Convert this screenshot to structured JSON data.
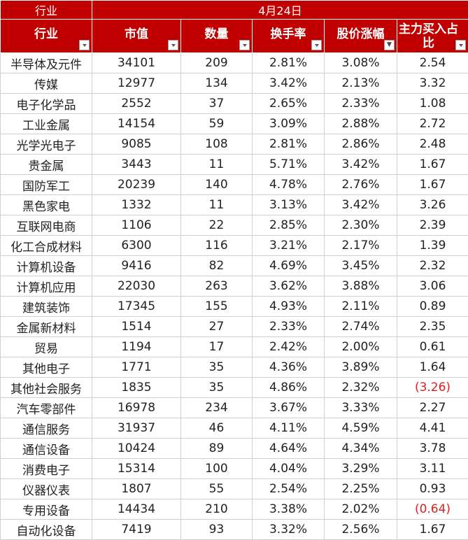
{
  "header": {
    "corner": "行业",
    "date": "4月24日",
    "columns": [
      "行业",
      "市值",
      "数量",
      "换手率",
      "股价涨幅",
      "主力买入占比"
    ]
  },
  "rows": [
    {
      "industry": "半导体及元件",
      "mcap": "34101",
      "count": "209",
      "turnover": "2.81%",
      "rise": "3.08%",
      "main": "2.54",
      "neg": false
    },
    {
      "industry": "传媒",
      "mcap": "12977",
      "count": "134",
      "turnover": "3.42%",
      "rise": "2.13%",
      "main": "3.32",
      "neg": false
    },
    {
      "industry": "电子化学品",
      "mcap": "2552",
      "count": "37",
      "turnover": "2.65%",
      "rise": "2.33%",
      "main": "1.08",
      "neg": false
    },
    {
      "industry": "工业金属",
      "mcap": "14154",
      "count": "59",
      "turnover": "3.09%",
      "rise": "2.88%",
      "main": "2.72",
      "neg": false
    },
    {
      "industry": "光学光电子",
      "mcap": "9085",
      "count": "108",
      "turnover": "2.81%",
      "rise": "2.86%",
      "main": "2.48",
      "neg": false
    },
    {
      "industry": "贵金属",
      "mcap": "3443",
      "count": "11",
      "turnover": "5.71%",
      "rise": "3.42%",
      "main": "1.67",
      "neg": false
    },
    {
      "industry": "国防军工",
      "mcap": "20239",
      "count": "140",
      "turnover": "4.78%",
      "rise": "2.76%",
      "main": "1.67",
      "neg": false
    },
    {
      "industry": "黑色家电",
      "mcap": "1332",
      "count": "11",
      "turnover": "3.13%",
      "rise": "3.42%",
      "main": "3.26",
      "neg": false
    },
    {
      "industry": "互联网电商",
      "mcap": "1106",
      "count": "22",
      "turnover": "2.85%",
      "rise": "2.30%",
      "main": "2.39",
      "neg": false
    },
    {
      "industry": "化工合成材料",
      "mcap": "6300",
      "count": "116",
      "turnover": "3.21%",
      "rise": "2.17%",
      "main": "1.39",
      "neg": false
    },
    {
      "industry": "计算机设备",
      "mcap": "9416",
      "count": "82",
      "turnover": "4.69%",
      "rise": "3.45%",
      "main": "2.32",
      "neg": false
    },
    {
      "industry": "计算机应用",
      "mcap": "22030",
      "count": "263",
      "turnover": "3.62%",
      "rise": "3.88%",
      "main": "3.06",
      "neg": false
    },
    {
      "industry": "建筑装饰",
      "mcap": "17345",
      "count": "155",
      "turnover": "4.93%",
      "rise": "2.11%",
      "main": "0.89",
      "neg": false
    },
    {
      "industry": "金属新材料",
      "mcap": "1514",
      "count": "27",
      "turnover": "2.33%",
      "rise": "2.74%",
      "main": "2.35",
      "neg": false
    },
    {
      "industry": "贸易",
      "mcap": "1194",
      "count": "17",
      "turnover": "2.42%",
      "rise": "2.00%",
      "main": "0.61",
      "neg": false
    },
    {
      "industry": "其他电子",
      "mcap": "1771",
      "count": "35",
      "turnover": "4.36%",
      "rise": "3.89%",
      "main": "1.64",
      "neg": false
    },
    {
      "industry": "其他社会服务",
      "mcap": "1835",
      "count": "35",
      "turnover": "4.86%",
      "rise": "2.32%",
      "main": "(3.26)",
      "neg": true
    },
    {
      "industry": "汽车零部件",
      "mcap": "16978",
      "count": "234",
      "turnover": "3.67%",
      "rise": "3.33%",
      "main": "2.27",
      "neg": false
    },
    {
      "industry": "通信服务",
      "mcap": "31937",
      "count": "46",
      "turnover": "4.11%",
      "rise": "4.59%",
      "main": "4.41",
      "neg": false
    },
    {
      "industry": "通信设备",
      "mcap": "10424",
      "count": "89",
      "turnover": "4.64%",
      "rise": "4.34%",
      "main": "3.78",
      "neg": false
    },
    {
      "industry": "消费电子",
      "mcap": "15314",
      "count": "100",
      "turnover": "4.04%",
      "rise": "3.29%",
      "main": "3.11",
      "neg": false
    },
    {
      "industry": "仪器仪表",
      "mcap": "1807",
      "count": "55",
      "turnover": "2.54%",
      "rise": "2.25%",
      "main": "0.93",
      "neg": false
    },
    {
      "industry": "专用设备",
      "mcap": "14434",
      "count": "210",
      "turnover": "3.38%",
      "rise": "2.02%",
      "main": "(0.64)",
      "neg": true
    },
    {
      "industry": "自动化设备",
      "mcap": "7419",
      "count": "93",
      "turnover": "3.32%",
      "rise": "2.56%",
      "main": "1.67",
      "neg": false
    }
  ],
  "colors": {
    "header_bg": "#c00000",
    "header_text": "#ffffff",
    "negative": "#e02020"
  }
}
